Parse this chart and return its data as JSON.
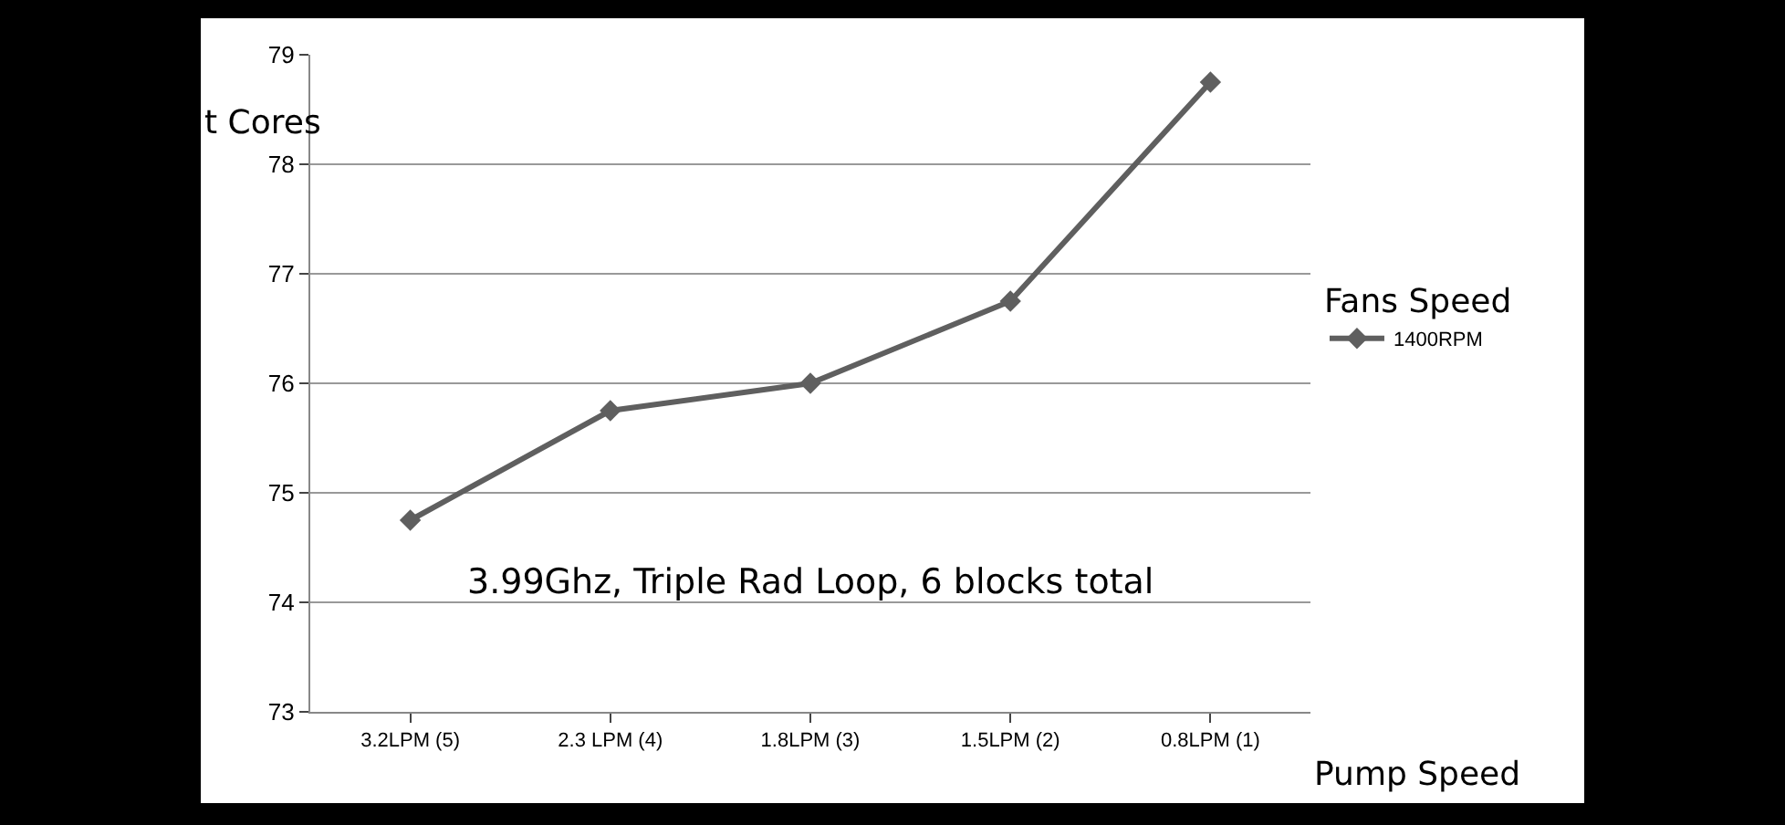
{
  "chart_data": {
    "type": "line",
    "ylabel": "t Cores",
    "xlabel": "Pump Speed",
    "legend_title": "Fans Speed",
    "categories": [
      "3.2LPM (5)",
      "2.3 LPM (4)",
      "1.8LPM (3)",
      "1.5LPM (2)",
      "0.8LPM (1)"
    ],
    "series": [
      {
        "name": "1400RPM",
        "color": "#5f5f5f",
        "values": [
          74.75,
          75.75,
          76.0,
          76.75,
          78.75
        ]
      }
    ],
    "ylim": [
      73,
      79
    ],
    "yticks": [
      73,
      74,
      75,
      76,
      77,
      78,
      79
    ],
    "grid": "y",
    "legend": "right",
    "marker": "diamond",
    "line_style": "solid",
    "annotations": [
      "3.99Ghz, Triple Rad Loop, 6 blocks total"
    ]
  }
}
